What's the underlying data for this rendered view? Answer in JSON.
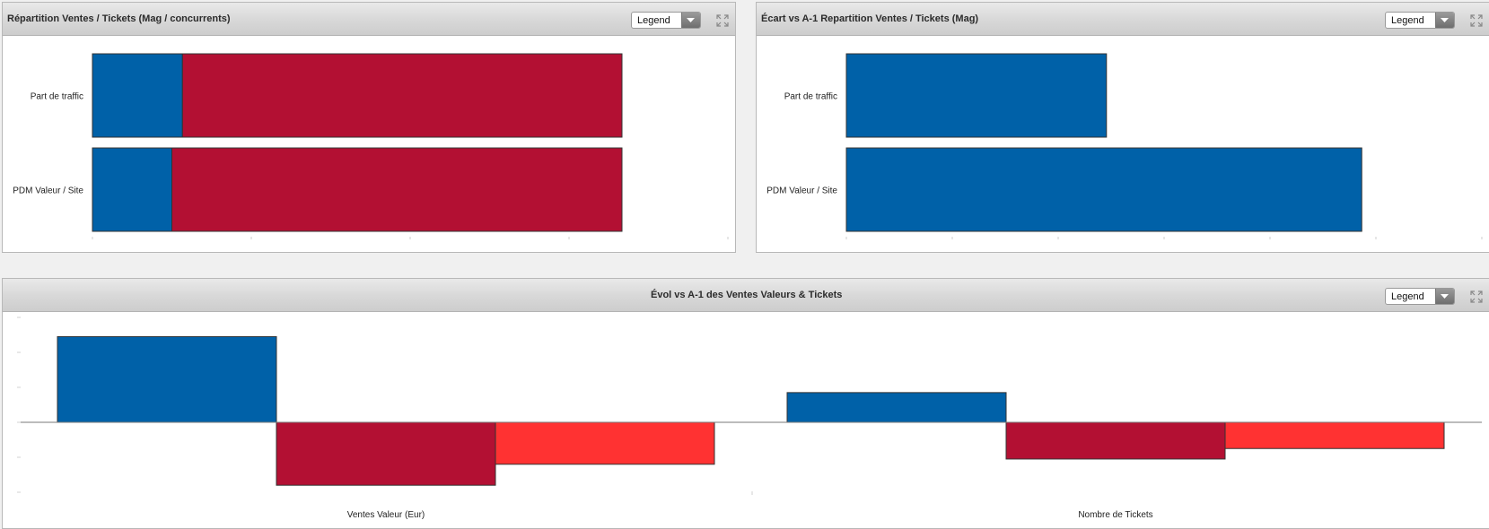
{
  "colors": {
    "blue": "#0061a8",
    "crimson": "#b31033",
    "red": "#ff3232",
    "border": "#333333"
  },
  "panels": {
    "repartition": {
      "title": "Répartition Ventes / Tickets (Mag / concurrents)",
      "legend_label": "Legend",
      "expand_icon": "expand-icon"
    },
    "ecart": {
      "title": "Écart vs A-1 Repartition Ventes / Tickets (Mag)",
      "legend_label": "Legend",
      "expand_icon": "expand-icon"
    },
    "evol": {
      "title": "Évol vs A-1 des Ventes Valeurs & Tickets",
      "legend_label": "Legend",
      "expand_icon": "expand-icon"
    }
  },
  "chart_data": [
    {
      "id": "repartition",
      "type": "bar",
      "orientation": "horizontal",
      "stacked": true,
      "categories": [
        "Part de traffic",
        "PDM Valeur / Site"
      ],
      "series": [
        {
          "color": "#0061a8",
          "values": [
            17,
            15
          ]
        },
        {
          "color": "#b31033",
          "values": [
            83,
            85
          ]
        }
      ],
      "xlim": [
        0,
        100
      ],
      "grid": false,
      "legend": "dropdown"
    },
    {
      "id": "ecart",
      "type": "bar",
      "orientation": "horizontal",
      "categories": [
        "Part de traffic",
        "PDM Valeur / Site"
      ],
      "series": [
        {
          "color": "#0061a8",
          "values": [
            2.7,
            5.35
          ]
        }
      ],
      "xlim": [
        0,
        6
      ],
      "grid": false,
      "legend": "dropdown"
    },
    {
      "id": "evol",
      "type": "bar",
      "orientation": "vertical",
      "categories": [
        "Ventes Valeur (Eur)",
        "Nombre de Tickets"
      ],
      "series": [
        {
          "color": "#0061a8",
          "values": [
            2.45,
            0.85
          ]
        },
        {
          "color": "#b31033",
          "values": [
            -1.8,
            -1.05
          ]
        },
        {
          "color": "#ff3232",
          "values": [
            -1.2,
            -0.75
          ]
        }
      ],
      "ylim": [
        -2,
        3
      ],
      "grid": false,
      "legend": "dropdown"
    }
  ]
}
